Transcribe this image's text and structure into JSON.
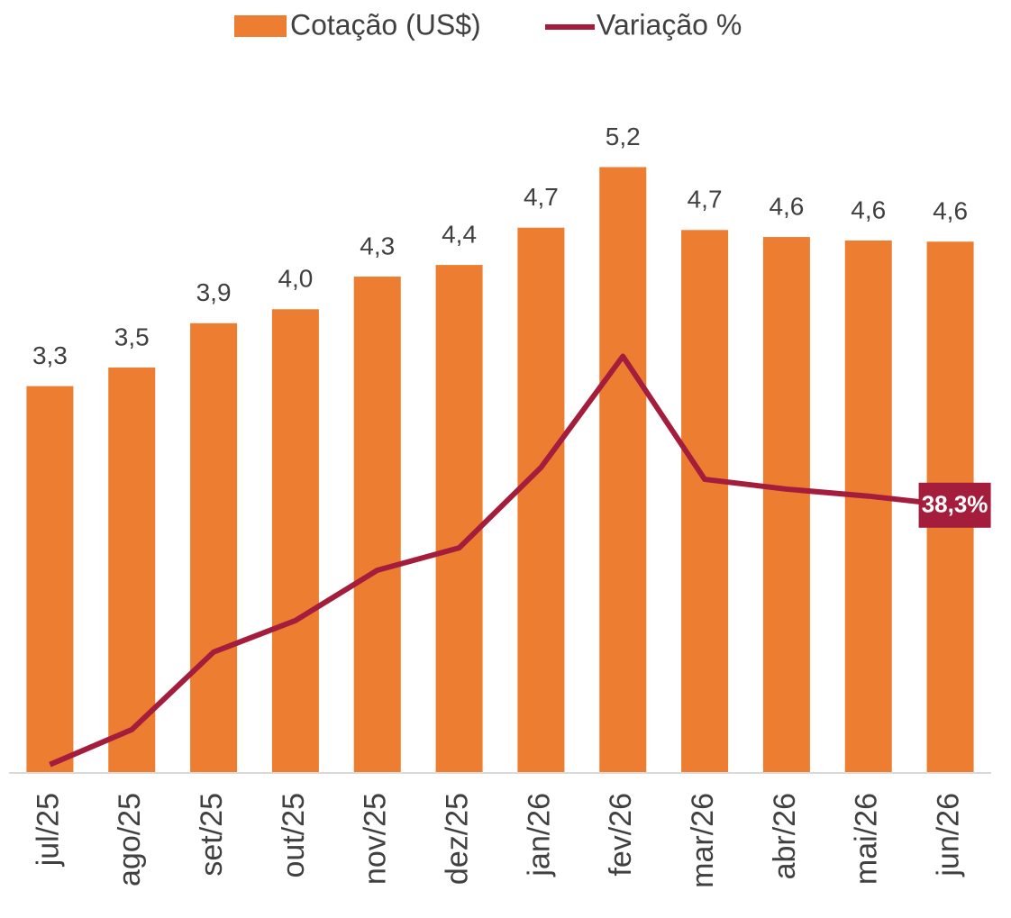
{
  "chart_data": {
    "type": "bar+line",
    "categories": [
      "jul/25",
      "ago/25",
      "set/25",
      "out/25",
      "nov/25",
      "dez/25",
      "jan/26",
      "fev/26",
      "mar/26",
      "abr/26",
      "mai/26",
      "jun/26"
    ],
    "series": [
      {
        "name": "Cotação (US$)",
        "type": "bar",
        "color": "#ed7d31",
        "values": [
          3.32,
          3.48,
          3.86,
          3.98,
          4.26,
          4.36,
          4.68,
          5.2,
          4.66,
          4.6,
          4.57,
          4.56
        ],
        "value_labels": [
          "3,3",
          "3,5",
          "3,9",
          "4,0",
          "4,3",
          "4,4",
          "4,7",
          "5,2",
          "4,7",
          "4,6",
          "4,6",
          "4,6"
        ]
      },
      {
        "name": "Variação %",
        "type": "line",
        "axis": "y2",
        "color": "#a51d3d",
        "values": [
          1.2,
          6.2,
          17.3,
          21.8,
          29.0,
          32.2,
          43.7,
          59.6,
          42.0,
          40.6,
          39.6,
          38.3
        ],
        "value_labels": [
          null,
          null,
          null,
          null,
          null,
          null,
          null,
          null,
          null,
          null,
          null,
          "38,3%"
        ]
      }
    ],
    "ylim": [
      0,
      6
    ],
    "y2lim": [
      0,
      100
    ],
    "legend": "top"
  }
}
